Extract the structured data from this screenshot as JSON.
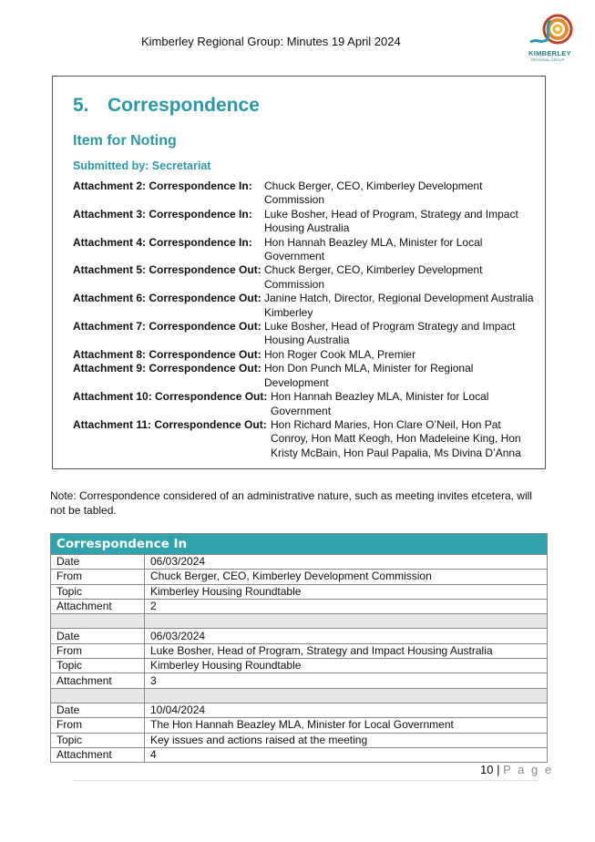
{
  "header": {
    "title": "Kimberley Regional Group: Minutes 19 April 2024",
    "logo_text": "THE KIMBERLEY REGIONAL GROUP"
  },
  "section": {
    "number": "5.",
    "title": "Correspondence",
    "subtitle": "Item for Noting",
    "submitted_by": "Submitted by: Secretariat"
  },
  "attachments": [
    {
      "label": "Attachment 2: Correspondence In:",
      "value": "Chuck Berger, CEO, Kimberley Development Commission"
    },
    {
      "label": "Attachment 3: Correspondence In:",
      "value": "Luke Bosher, Head of Program, Strategy and Impact Housing Australia"
    },
    {
      "label": "Attachment 4: Correspondence In:",
      "value": "Hon Hannah Beazley MLA, Minister for Local Government"
    },
    {
      "label": "Attachment 5: Correspondence Out:",
      "value": "Chuck Berger, CEO, Kimberley Development Commission"
    },
    {
      "label": "Attachment 6: Correspondence Out:",
      "value": "Janine Hatch, Director, Regional Development Australia Kimberley"
    },
    {
      "label": "Attachment 7: Correspondence Out:",
      "value": "Luke Bosher, Head of Program Strategy and Impact Housing Australia"
    },
    {
      "label": "Attachment 8: Correspondence Out:",
      "value": "Hon Roger Cook MLA, Premier"
    },
    {
      "label": "Attachment 9: Correspondence Out:",
      "value": "Hon Don Punch MLA, Minister for Regional Development"
    },
    {
      "label": "Attachment 10: Correspondence Out:",
      "value": "Hon Hannah Beazley MLA, Minister for Local Government"
    },
    {
      "label": "Attachment 11: Correspondence Out:",
      "value": "Hon Richard Maries, Hon Clare O’Neil, Hon Pat Conroy, Hon Matt Keogh, Hon Madeleine King, Hon Kristy McBain, Hon Paul Papalia, Ms Divina D’Anna"
    }
  ],
  "note": "Note: Correspondence considered of an administrative nature, such as meeting invites etcetera, will not be tabled.",
  "table": {
    "title": "Correspondence In",
    "rows": [
      [
        "Date",
        "06/03/2024"
      ],
      [
        "From",
        "Chuck Berger, CEO, Kimberley Development Commission"
      ],
      [
        "Topic",
        "Kimberley Housing Roundtable"
      ],
      [
        "Attachment",
        "2"
      ],
      [
        "",
        ""
      ],
      [
        "Date",
        "06/03/2024"
      ],
      [
        "From",
        "Luke Bosher, Head of Program, Strategy and Impact Housing Australia"
      ],
      [
        "Topic",
        "Kimberley Housing Roundtable"
      ],
      [
        "Attachment",
        "3"
      ],
      [
        "",
        ""
      ],
      [
        "Date",
        "10/04/2024"
      ],
      [
        "From",
        "The Hon Hannah Beazley MLA, Minister for Local Government"
      ],
      [
        "Topic",
        "Key issues and actions raised at the meeting"
      ],
      [
        "Attachment",
        "4"
      ]
    ]
  },
  "footer": {
    "page_number": "10",
    "separator": "|",
    "page_label": "P a g e"
  },
  "colors": {
    "accent": "#2e97a6",
    "table_header": "#31a3ac"
  }
}
